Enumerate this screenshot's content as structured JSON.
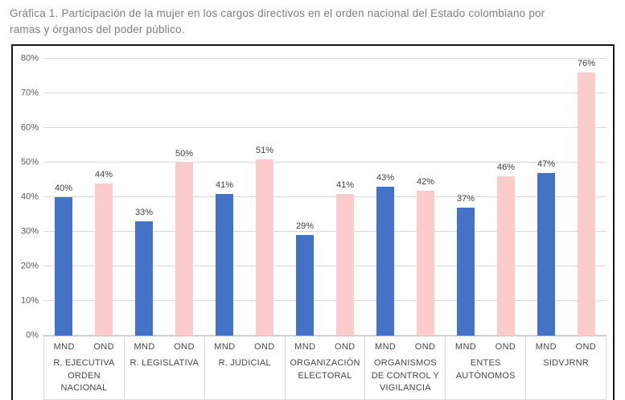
{
  "title": "Gráfica 1. Participación de la mujer en los cargos directivos en el orden nacional del Estado colombiano por ramas y órganos del poder público.",
  "chart_data": {
    "type": "bar",
    "title": "Participación de la mujer en los cargos directivos en el orden nacional del Estado colombiano por ramas y órganos del poder público",
    "categories": [
      "R. EJECUTIVA ORDEN NACIONAL",
      "R. LEGISLATIVA",
      "R. JUDICIAL",
      "ORGANIZACIÓN ELECTORAL",
      "ORGANISMOS DE CONTROL Y VIGILANCIA",
      "ENTES AUTÓNOMOS",
      "SIDVJRNR"
    ],
    "series": [
      {
        "name": "MND",
        "color": "#4472C4",
        "values": [
          40,
          33,
          41,
          29,
          43,
          37,
          47
        ]
      },
      {
        "name": "OND",
        "color": "#FBCBCE",
        "values": [
          44,
          50,
          51,
          41,
          42,
          46,
          76
        ]
      }
    ],
    "y_tick_labels": [
      "0%",
      "10%",
      "20%",
      "30%",
      "40%",
      "50%",
      "60%",
      "70%",
      "80%"
    ],
    "y_tick_values": [
      0,
      10,
      20,
      30,
      40,
      50,
      60,
      70,
      80
    ],
    "ylim": [
      0,
      80
    ],
    "grid": true,
    "legend_position": "none",
    "value_suffix": "%",
    "colors": {
      "gridline": "#d9d9d9",
      "axis_text": "#595959",
      "value_label_text": "#404040",
      "frame_border": "#181818"
    }
  }
}
